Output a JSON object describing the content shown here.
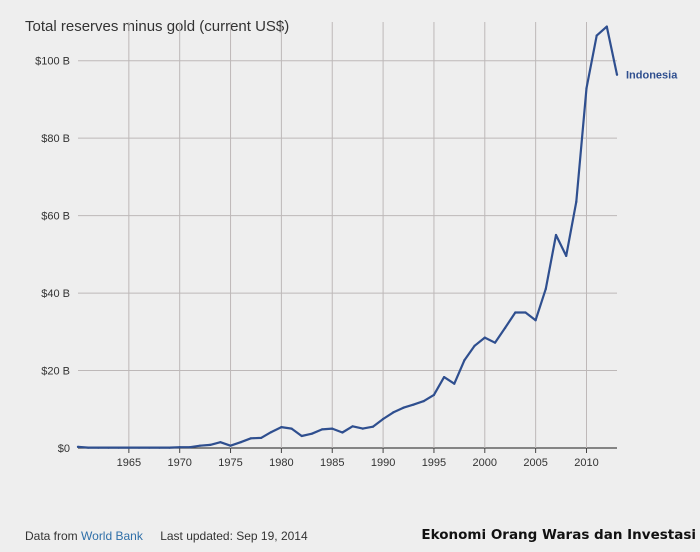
{
  "chart_data": {
    "type": "line",
    "title": "Total reserves minus gold (current US$)",
    "xlabel": "",
    "ylabel": "",
    "xlim": [
      1960,
      2013
    ],
    "ylim": [
      0,
      110
    ],
    "y_unit_suffix": " B",
    "x_ticks": [
      1965,
      1970,
      1975,
      1980,
      1985,
      1990,
      1995,
      2000,
      2005,
      2010
    ],
    "y_ticks": [
      0,
      20,
      40,
      60,
      80,
      100
    ],
    "y_tick_labels": [
      "$0",
      "$20 B",
      "$40 B",
      "$60 B",
      "$80 B",
      "$100 B"
    ],
    "grid": true,
    "legend": "right-end-label",
    "series": [
      {
        "name": "Indonesia",
        "color": "#2f4f8f",
        "x": [
          1960,
          1961,
          1962,
          1963,
          1964,
          1965,
          1966,
          1967,
          1968,
          1969,
          1970,
          1971,
          1972,
          1973,
          1974,
          1975,
          1976,
          1977,
          1978,
          1979,
          1980,
          1981,
          1982,
          1983,
          1984,
          1985,
          1986,
          1987,
          1988,
          1989,
          1990,
          1991,
          1992,
          1993,
          1994,
          1995,
          1996,
          1997,
          1998,
          1999,
          2000,
          2001,
          2002,
          2003,
          2004,
          2005,
          2006,
          2007,
          2008,
          2009,
          2010,
          2011,
          2012,
          2013
        ],
        "values": [
          0.3,
          0.1,
          0.1,
          0.1,
          0.1,
          0.1,
          0.1,
          0.1,
          0.1,
          0.1,
          0.2,
          0.2,
          0.6,
          0.8,
          1.5,
          0.6,
          1.5,
          2.5,
          2.6,
          4.1,
          5.4,
          5.0,
          3.1,
          3.7,
          4.8,
          5.0,
          4.0,
          5.6,
          5.0,
          5.5,
          7.5,
          9.2,
          10.4,
          11.2,
          12.1,
          13.7,
          18.3,
          16.6,
          22.7,
          26.4,
          28.5,
          27.2,
          31.0,
          35.0,
          35.0,
          33.0,
          41.1,
          55.0,
          49.6,
          63.6,
          92.9,
          106.5,
          108.8,
          96.4
        ]
      }
    ]
  },
  "footer": {
    "source_prefix": "Data from",
    "source_link": "World Bank",
    "updated": "Last updated: Sep 19, 2014",
    "watermark": "Ekonomi Orang Waras dan Investasi"
  }
}
